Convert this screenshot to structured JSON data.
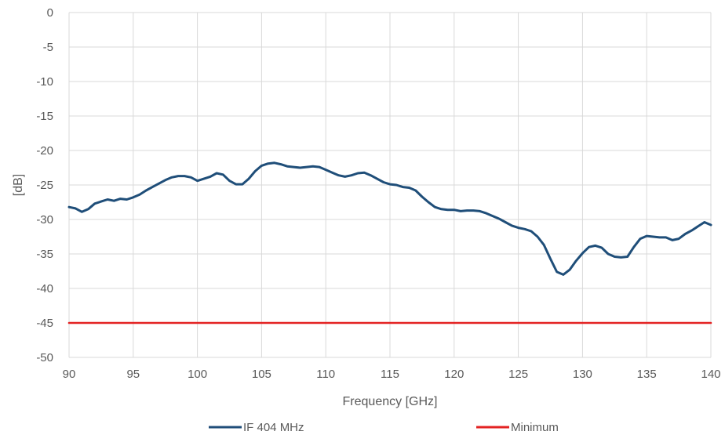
{
  "chart_data": {
    "type": "line",
    "title": "",
    "xlabel": "Frequency [GHz]",
    "ylabel": "[dB]",
    "xlim": [
      90,
      140
    ],
    "ylim": [
      -50,
      0
    ],
    "xticks": [
      90,
      95,
      100,
      105,
      110,
      115,
      120,
      125,
      130,
      135,
      140
    ],
    "yticks": [
      0,
      -5,
      -10,
      -15,
      -20,
      -25,
      -30,
      -35,
      -40,
      -45,
      -50
    ],
    "grid": true,
    "legend_position": "bottom",
    "series": [
      {
        "name": "IF 404 MHz",
        "color": "#1f4e79",
        "x": [
          90,
          90.5,
          91,
          91.5,
          92,
          92.5,
          93,
          93.5,
          94,
          94.5,
          95,
          95.5,
          96,
          96.5,
          97,
          97.5,
          98,
          98.5,
          99,
          99.5,
          100,
          100.5,
          101,
          101.5,
          102,
          102.5,
          103,
          103.5,
          104,
          104.5,
          105,
          105.5,
          106,
          106.5,
          107,
          107.5,
          108,
          108.5,
          109,
          109.5,
          110,
          110.5,
          111,
          111.5,
          112,
          112.5,
          113,
          113.5,
          114,
          114.5,
          115,
          115.5,
          116,
          116.5,
          117,
          117.5,
          118,
          118.5,
          119,
          119.5,
          120,
          120.5,
          121,
          121.5,
          122,
          122.5,
          123,
          123.5,
          124,
          124.5,
          125,
          125.5,
          126,
          126.5,
          127,
          127.5,
          128,
          128.5,
          129,
          129.5,
          130,
          130.5,
          131,
          131.5,
          132,
          132.5,
          133,
          133.5,
          134,
          134.5,
          135,
          135.5,
          136,
          136.5,
          137,
          137.5,
          138,
          138.5,
          139,
          139.5,
          140
        ],
        "y": [
          -28.2,
          -28.4,
          -28.9,
          -28.5,
          -27.7,
          -27.4,
          -27.1,
          -27.3,
          -27.0,
          -27.1,
          -26.8,
          -26.4,
          -25.8,
          -25.3,
          -24.8,
          -24.3,
          -23.9,
          -23.7,
          -23.7,
          -23.9,
          -24.4,
          -24.1,
          -23.8,
          -23.3,
          -23.5,
          -24.4,
          -24.9,
          -24.9,
          -24.1,
          -23.0,
          -22.2,
          -21.9,
          -21.8,
          -22.0,
          -22.3,
          -22.4,
          -22.5,
          -22.4,
          -22.3,
          -22.4,
          -22.8,
          -23.2,
          -23.6,
          -23.8,
          -23.6,
          -23.3,
          -23.2,
          -23.6,
          -24.1,
          -24.6,
          -24.9,
          -25.0,
          -25.3,
          -25.4,
          -25.8,
          -26.7,
          -27.5,
          -28.2,
          -28.5,
          -28.6,
          -28.6,
          -28.8,
          -28.7,
          -28.7,
          -28.8,
          -29.1,
          -29.5,
          -29.9,
          -30.4,
          -30.9,
          -31.2,
          -31.4,
          -31.7,
          -32.5,
          -33.7,
          -35.7,
          -37.6,
          -38.0,
          -37.3,
          -36.0,
          -34.9,
          -34.0,
          -33.8,
          -34.1,
          -35.0,
          -35.4,
          -35.5,
          -35.4,
          -34.0,
          -32.8,
          -32.4,
          -32.5,
          -32.6,
          -32.6,
          -33.0,
          -32.8,
          -32.1,
          -31.6,
          -31.0,
          -30.4,
          -30.8
        ]
      },
      {
        "name": "Minimum",
        "color": "#e32222",
        "x": [
          90,
          140
        ],
        "y": [
          -45,
          -45
        ]
      }
    ]
  }
}
